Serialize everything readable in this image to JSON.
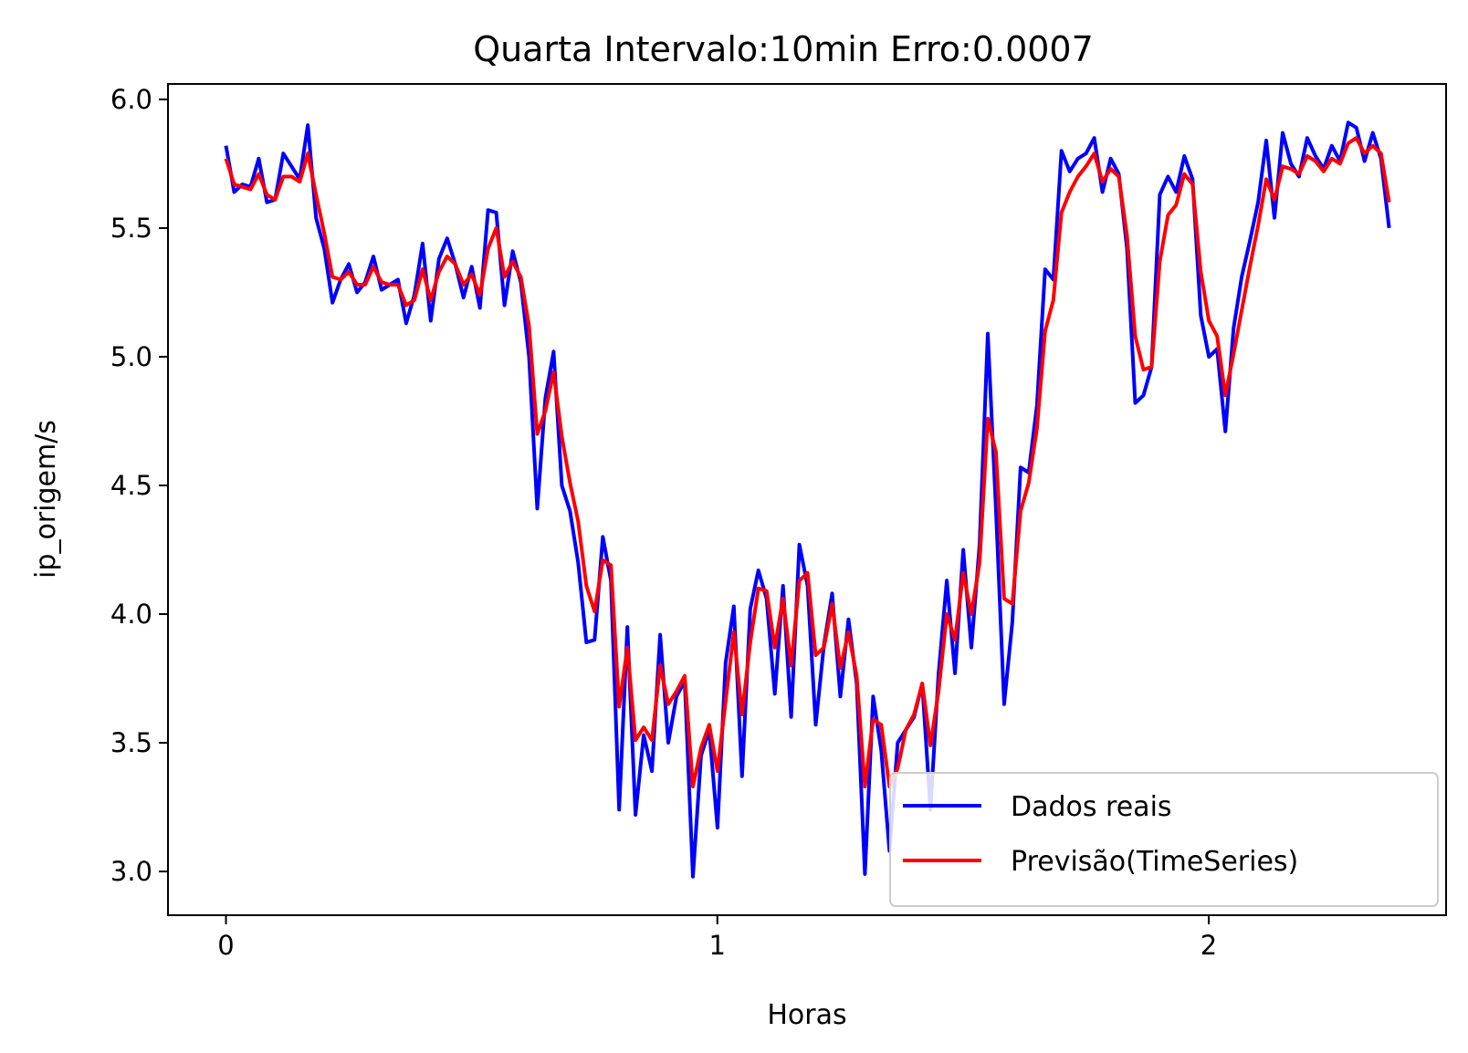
{
  "chart_data": {
    "type": "line",
    "title": "Quarta Intervalo:10min Erro:0.0007",
    "xlabel": "Horas",
    "ylabel": "ip_origem/s",
    "xlim": [
      -0.118,
      2.483
    ],
    "ylim": [
      2.83,
      6.06
    ],
    "xticks": [
      0,
      1,
      2
    ],
    "xtick_labels": [
      "0",
      "1",
      "2"
    ],
    "yticks": [
      3.0,
      3.5,
      4.0,
      4.5,
      5.0,
      5.5,
      6.0
    ],
    "ytick_labels": [
      "3.0",
      "3.5",
      "4.0",
      "4.5",
      "5.0",
      "5.5",
      "6.0"
    ],
    "grid": false,
    "legend_position": "bottom-right",
    "x_step": 0.01667,
    "series": [
      {
        "name": "Dados reais",
        "color": "#0000ff",
        "values": [
          5.82,
          5.64,
          5.67,
          5.66,
          5.77,
          5.6,
          5.61,
          5.79,
          5.74,
          5.69,
          5.9,
          5.54,
          5.42,
          5.21,
          5.3,
          5.36,
          5.25,
          5.29,
          5.39,
          5.26,
          5.28,
          5.3,
          5.13,
          5.24,
          5.44,
          5.14,
          5.38,
          5.46,
          5.36,
          5.23,
          5.35,
          5.19,
          5.57,
          5.56,
          5.2,
          5.41,
          5.29,
          5.0,
          4.41,
          4.84,
          5.02,
          4.5,
          4.4,
          4.2,
          3.89,
          3.9,
          4.3,
          4.13,
          3.24,
          3.95,
          3.22,
          3.53,
          3.39,
          3.92,
          3.5,
          3.68,
          3.74,
          2.98,
          3.45,
          3.55,
          3.17,
          3.81,
          4.03,
          3.37,
          4.02,
          4.17,
          4.06,
          3.69,
          4.11,
          3.6,
          4.27,
          4.11,
          3.57,
          3.88,
          4.08,
          3.68,
          3.98,
          3.73,
          2.99,
          3.68,
          3.47,
          3.08,
          3.5,
          3.55,
          3.6,
          3.73,
          3.24,
          3.77,
          4.13,
          3.77,
          4.25,
          3.87,
          4.27,
          5.09,
          4.41,
          3.65,
          3.97,
          4.57,
          4.55,
          4.81,
          5.34,
          5.3,
          5.8,
          5.72,
          5.77,
          5.79,
          5.85,
          5.64,
          5.77,
          5.71,
          5.42,
          4.82,
          4.85,
          4.96,
          5.63,
          5.7,
          5.64,
          5.78,
          5.69,
          5.16,
          5.0,
          5.03,
          4.71,
          5.11,
          5.31,
          5.45,
          5.6,
          5.84,
          5.54,
          5.87,
          5.75,
          5.7,
          5.85,
          5.78,
          5.73,
          5.82,
          5.76,
          5.91,
          5.89,
          5.76,
          5.87,
          5.77,
          5.5
        ]
      },
      {
        "name": "Previsão(TimeSeries)",
        "color": "#ff0000",
        "values": [
          5.77,
          5.67,
          5.66,
          5.65,
          5.71,
          5.63,
          5.61,
          5.7,
          5.7,
          5.68,
          5.79,
          5.63,
          5.48,
          5.31,
          5.3,
          5.33,
          5.28,
          5.28,
          5.35,
          5.29,
          5.28,
          5.28,
          5.2,
          5.22,
          5.34,
          5.22,
          5.33,
          5.39,
          5.36,
          5.28,
          5.32,
          5.24,
          5.42,
          5.5,
          5.31,
          5.37,
          5.31,
          5.12,
          4.7,
          4.79,
          4.94,
          4.69,
          4.51,
          4.36,
          4.11,
          4.01,
          4.21,
          4.19,
          3.64,
          3.87,
          3.51,
          3.56,
          3.51,
          3.8,
          3.65,
          3.7,
          3.76,
          3.33,
          3.48,
          3.57,
          3.39,
          3.66,
          3.93,
          3.61,
          3.89,
          4.1,
          4.09,
          3.87,
          4.06,
          3.8,
          4.13,
          4.16,
          3.84,
          3.87,
          4.04,
          3.79,
          3.93,
          3.76,
          3.33,
          3.59,
          3.57,
          3.33,
          3.4,
          3.55,
          3.61,
          3.73,
          3.49,
          3.7,
          4.0,
          3.9,
          4.16,
          4.0,
          4.2,
          4.76,
          4.63,
          4.06,
          4.04,
          4.4,
          4.51,
          4.72,
          5.1,
          5.22,
          5.56,
          5.64,
          5.7,
          5.74,
          5.79,
          5.68,
          5.73,
          5.7,
          5.47,
          5.08,
          4.95,
          4.96,
          5.37,
          5.55,
          5.59,
          5.71,
          5.67,
          5.33,
          5.14,
          5.08,
          4.85,
          5.01,
          5.18,
          5.35,
          5.51,
          5.69,
          5.61,
          5.74,
          5.73,
          5.71,
          5.78,
          5.76,
          5.72,
          5.77,
          5.75,
          5.83,
          5.85,
          5.79,
          5.82,
          5.79,
          5.6
        ]
      }
    ]
  }
}
